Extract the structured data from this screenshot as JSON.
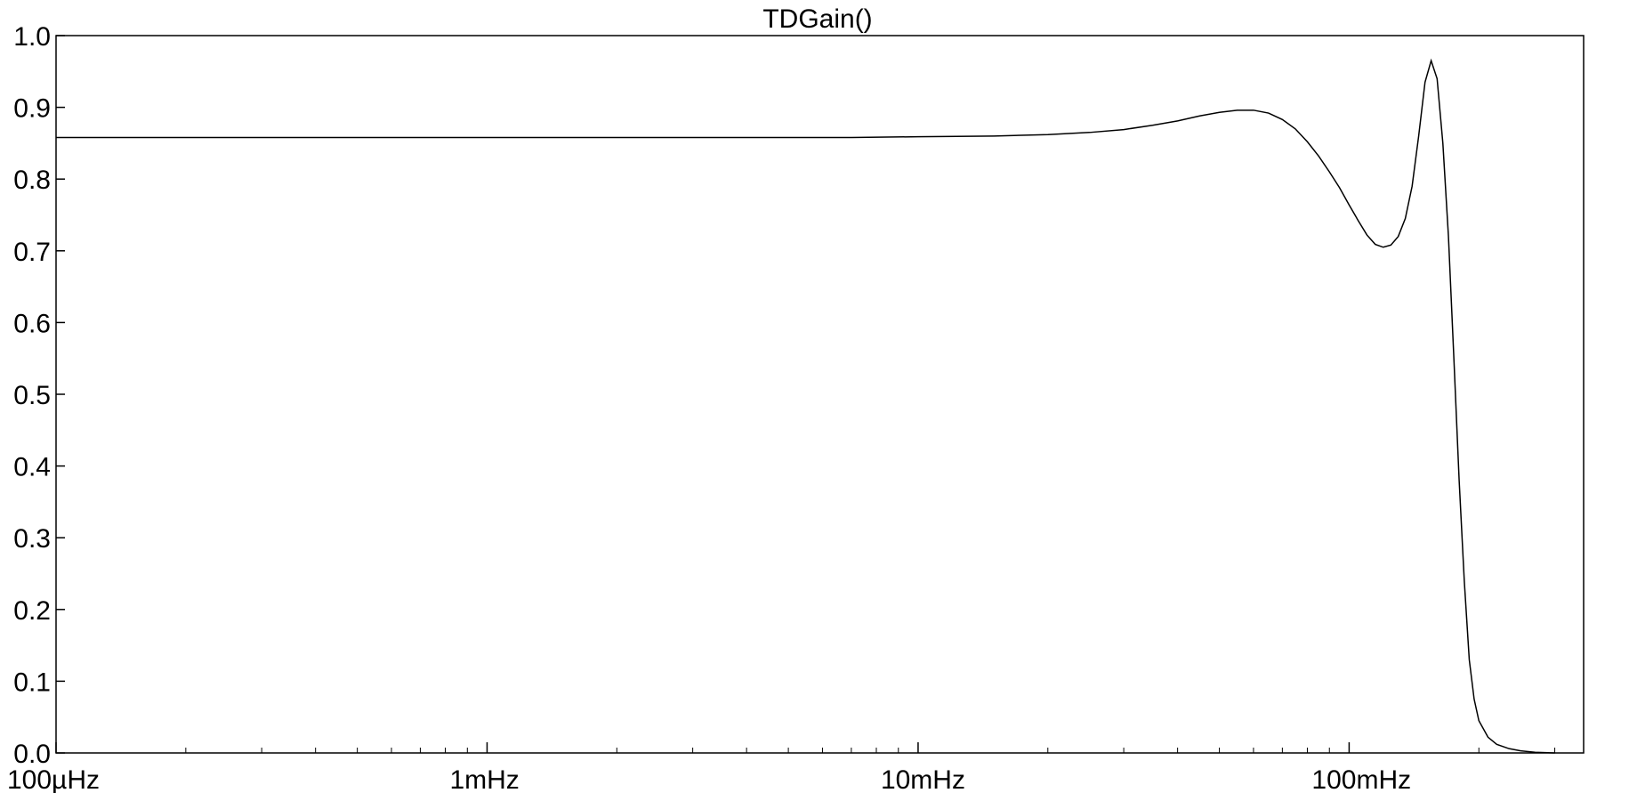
{
  "chart_data": {
    "type": "line",
    "title": "TDGain()",
    "xlabel": "",
    "ylabel": "",
    "x_scale": "log",
    "x_unit": "Hz",
    "xlim": [
      0.0001,
      0.35
    ],
    "ylim": [
      0.0,
      1.0
    ],
    "grid": false,
    "legend": "none",
    "x_ticks": [
      {
        "value": 0.0001,
        "label": "100µHz"
      },
      {
        "value": 0.001,
        "label": "1mHz"
      },
      {
        "value": 0.01,
        "label": "10mHz"
      },
      {
        "value": 0.1,
        "label": "100mHz"
      }
    ],
    "y_ticks": [
      {
        "value": 0.0,
        "label": "0.0"
      },
      {
        "value": 0.1,
        "label": "0.1"
      },
      {
        "value": 0.2,
        "label": "0.2"
      },
      {
        "value": 0.3,
        "label": "0.3"
      },
      {
        "value": 0.4,
        "label": "0.4"
      },
      {
        "value": 0.5,
        "label": "0.5"
      },
      {
        "value": 0.6,
        "label": "0.6"
      },
      {
        "value": 0.7,
        "label": "0.7"
      },
      {
        "value": 0.8,
        "label": "0.8"
      },
      {
        "value": 0.9,
        "label": "0.9"
      },
      {
        "value": 1.0,
        "label": "1.0"
      }
    ],
    "series": [
      {
        "color": "#000000",
        "x": [
          0.0001,
          0.001,
          0.003,
          0.007,
          0.01,
          0.015,
          0.02,
          0.025,
          0.03,
          0.035,
          0.04,
          0.045,
          0.05,
          0.055,
          0.06,
          0.065,
          0.07,
          0.075,
          0.08,
          0.085,
          0.09,
          0.095,
          0.1,
          0.105,
          0.11,
          0.115,
          0.12,
          0.125,
          0.13,
          0.135,
          0.14,
          0.145,
          0.15,
          0.155,
          0.16,
          0.165,
          0.17,
          0.175,
          0.18,
          0.185,
          0.19,
          0.195,
          0.2,
          0.21,
          0.22,
          0.235,
          0.25,
          0.27,
          0.3
        ],
        "values": [
          0.858,
          0.858,
          0.858,
          0.858,
          0.859,
          0.86,
          0.862,
          0.865,
          0.869,
          0.875,
          0.881,
          0.888,
          0.893,
          0.896,
          0.896,
          0.892,
          0.883,
          0.87,
          0.852,
          0.832,
          0.81,
          0.788,
          0.764,
          0.742,
          0.722,
          0.709,
          0.705,
          0.708,
          0.72,
          0.745,
          0.79,
          0.86,
          0.935,
          0.965,
          0.94,
          0.85,
          0.72,
          0.55,
          0.38,
          0.24,
          0.13,
          0.075,
          0.045,
          0.022,
          0.012,
          0.006,
          0.003,
          0.001,
          0.0
        ]
      }
    ]
  }
}
